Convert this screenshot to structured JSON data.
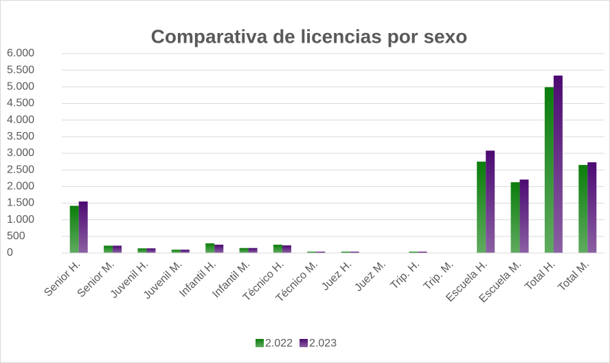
{
  "chart_data": {
    "type": "bar",
    "title": "Comparativa de licencias por sexo",
    "categories": [
      "Senior H.",
      "Senior M.",
      "Juvenil H.",
      "Juvenil M.",
      "Infantil H.",
      "Infantil M.",
      "Técnico H.",
      "Técnico M.",
      "Juez H.",
      "Juez M.",
      "Trip. H.",
      "Trip. M.",
      "Escuela H.",
      "Escuela M.",
      "Total H.",
      "Total M."
    ],
    "series": [
      {
        "name": "2.022",
        "color": "#0b7d0b",
        "values": [
          1420,
          220,
          140,
          100,
          290,
          150,
          250,
          40,
          40,
          5,
          40,
          5,
          2750,
          2130,
          4990,
          2650
        ]
      },
      {
        "name": "2.023",
        "color": "#4c0a72",
        "values": [
          1550,
          220,
          140,
          100,
          250,
          150,
          230,
          40,
          40,
          5,
          40,
          5,
          3080,
          2210,
          5340,
          2730
        ]
      }
    ],
    "ylim": [
      0,
      6000
    ],
    "yticks": [
      0,
      500,
      {
        "value": 1000,
        "label": "1.000"
      },
      {
        "value": 1500,
        "label": "1.500"
      },
      {
        "value": 2000,
        "label": "2.000"
      },
      {
        "value": 2500,
        "label": "2.500"
      },
      {
        "value": 3000,
        "label": "3.000"
      },
      {
        "value": 3500,
        "label": "3.500"
      },
      {
        "value": 4000,
        "label": "4.000"
      },
      {
        "value": 4500,
        "label": "4.500"
      },
      {
        "value": 5000,
        "label": "5.000"
      },
      {
        "value": 5500,
        "label": "5.500"
      },
      {
        "value": 6000,
        "label": "6.000"
      }
    ],
    "grid": true,
    "legend": "bottom"
  }
}
